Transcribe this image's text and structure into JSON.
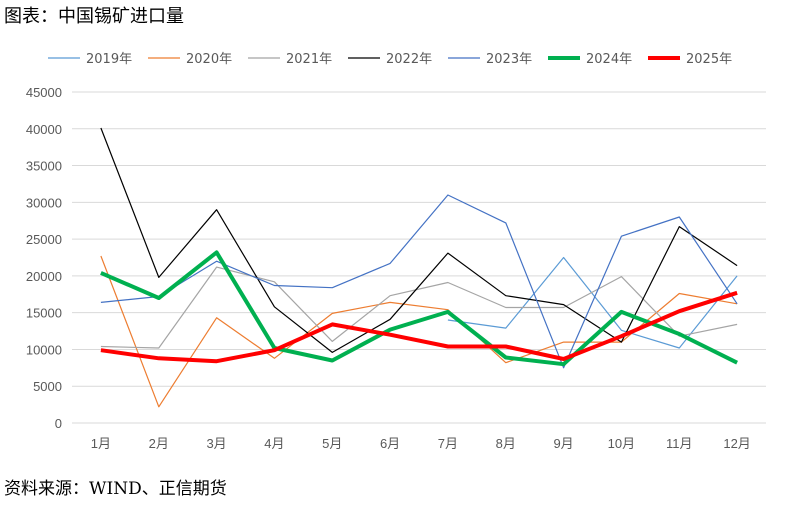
{
  "chart_data": {
    "type": "line",
    "title": "图表：中国锡矿进口量",
    "source": "资料来源：WIND、正信期货",
    "categories": [
      "1月",
      "2月",
      "3月",
      "4月",
      "5月",
      "6月",
      "7月",
      "8月",
      "9月",
      "10月",
      "11月",
      "12月"
    ],
    "ylim": [
      0,
      45000
    ],
    "yticks": [
      0,
      5000,
      10000,
      15000,
      20000,
      25000,
      30000,
      35000,
      40000,
      45000
    ],
    "grid": true,
    "legend_position": "top",
    "series": [
      {
        "name": "2019年",
        "color": "#5B9BD5",
        "width": 1.2,
        "values": [
          null,
          null,
          null,
          null,
          null,
          null,
          14000,
          12900,
          22500,
          12600,
          10200,
          20000
        ]
      },
      {
        "name": "2020年",
        "color": "#ED7D31",
        "width": 1.2,
        "values": [
          22700,
          2200,
          14300,
          8800,
          14900,
          16400,
          15400,
          8200,
          11000,
          11000,
          17600,
          16200
        ]
      },
      {
        "name": "2021年",
        "color": "#A5A5A5",
        "width": 1.2,
        "values": [
          10400,
          10200,
          21200,
          19200,
          11100,
          17300,
          19100,
          15700,
          15700,
          19900,
          11800,
          13400
        ]
      },
      {
        "name": "2022年",
        "color": "#000000",
        "width": 1.2,
        "values": [
          40100,
          19800,
          29000,
          15800,
          9600,
          14100,
          23100,
          17300,
          16100,
          11000,
          26700,
          21400
        ]
      },
      {
        "name": "2023年",
        "color": "#4472C4",
        "width": 1.2,
        "values": [
          16400,
          17200,
          22000,
          18700,
          18400,
          21700,
          31000,
          27200,
          7500,
          25400,
          28000,
          16200
        ]
      },
      {
        "name": "2024年",
        "color": "#00B050",
        "width": 4,
        "values": [
          20400,
          17000,
          23200,
          10200,
          8500,
          12700,
          15100,
          8900,
          8000,
          15100,
          12100,
          8200
        ]
      },
      {
        "name": "2025年",
        "color": "#FF0000",
        "width": 4,
        "values": [
          9900,
          8800,
          8400,
          9900,
          13400,
          12000,
          10400,
          10400,
          8700,
          11800,
          15200,
          17700
        ]
      }
    ]
  }
}
